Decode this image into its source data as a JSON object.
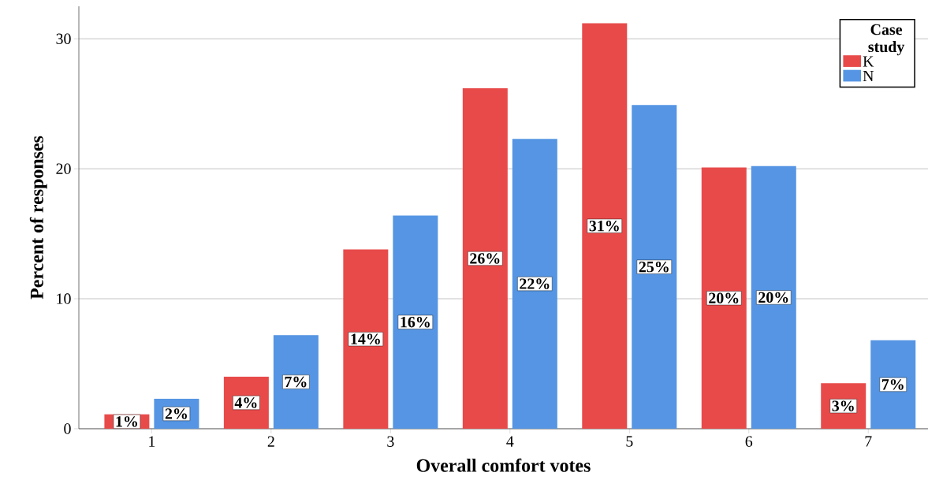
{
  "chart_data": {
    "type": "bar",
    "xlabel": "Overall comfort votes",
    "ylabel": "Percent of responses",
    "legend_title": "Case study",
    "categories": [
      "1",
      "2",
      "3",
      "4",
      "5",
      "6",
      "7"
    ],
    "series": [
      {
        "name": "K",
        "color": "#e84a4a",
        "values": [
          1.1,
          4.0,
          13.8,
          26.2,
          31.2,
          20.1,
          3.5
        ],
        "value_labels": [
          "1%",
          "4%",
          "14%",
          "26%",
          "31%",
          "20%",
          "3%"
        ]
      },
      {
        "name": "N",
        "color": "#5595e3",
        "values": [
          2.3,
          7.2,
          16.4,
          22.3,
          24.9,
          20.2,
          6.8
        ],
        "value_labels": [
          "2%",
          "7%",
          "16%",
          "22%",
          "25%",
          "20%",
          "7%"
        ]
      }
    ],
    "ylim": [
      0,
      32.5
    ],
    "yticks": [
      0,
      10,
      20,
      30
    ],
    "grid": "y",
    "legend": "top right"
  }
}
